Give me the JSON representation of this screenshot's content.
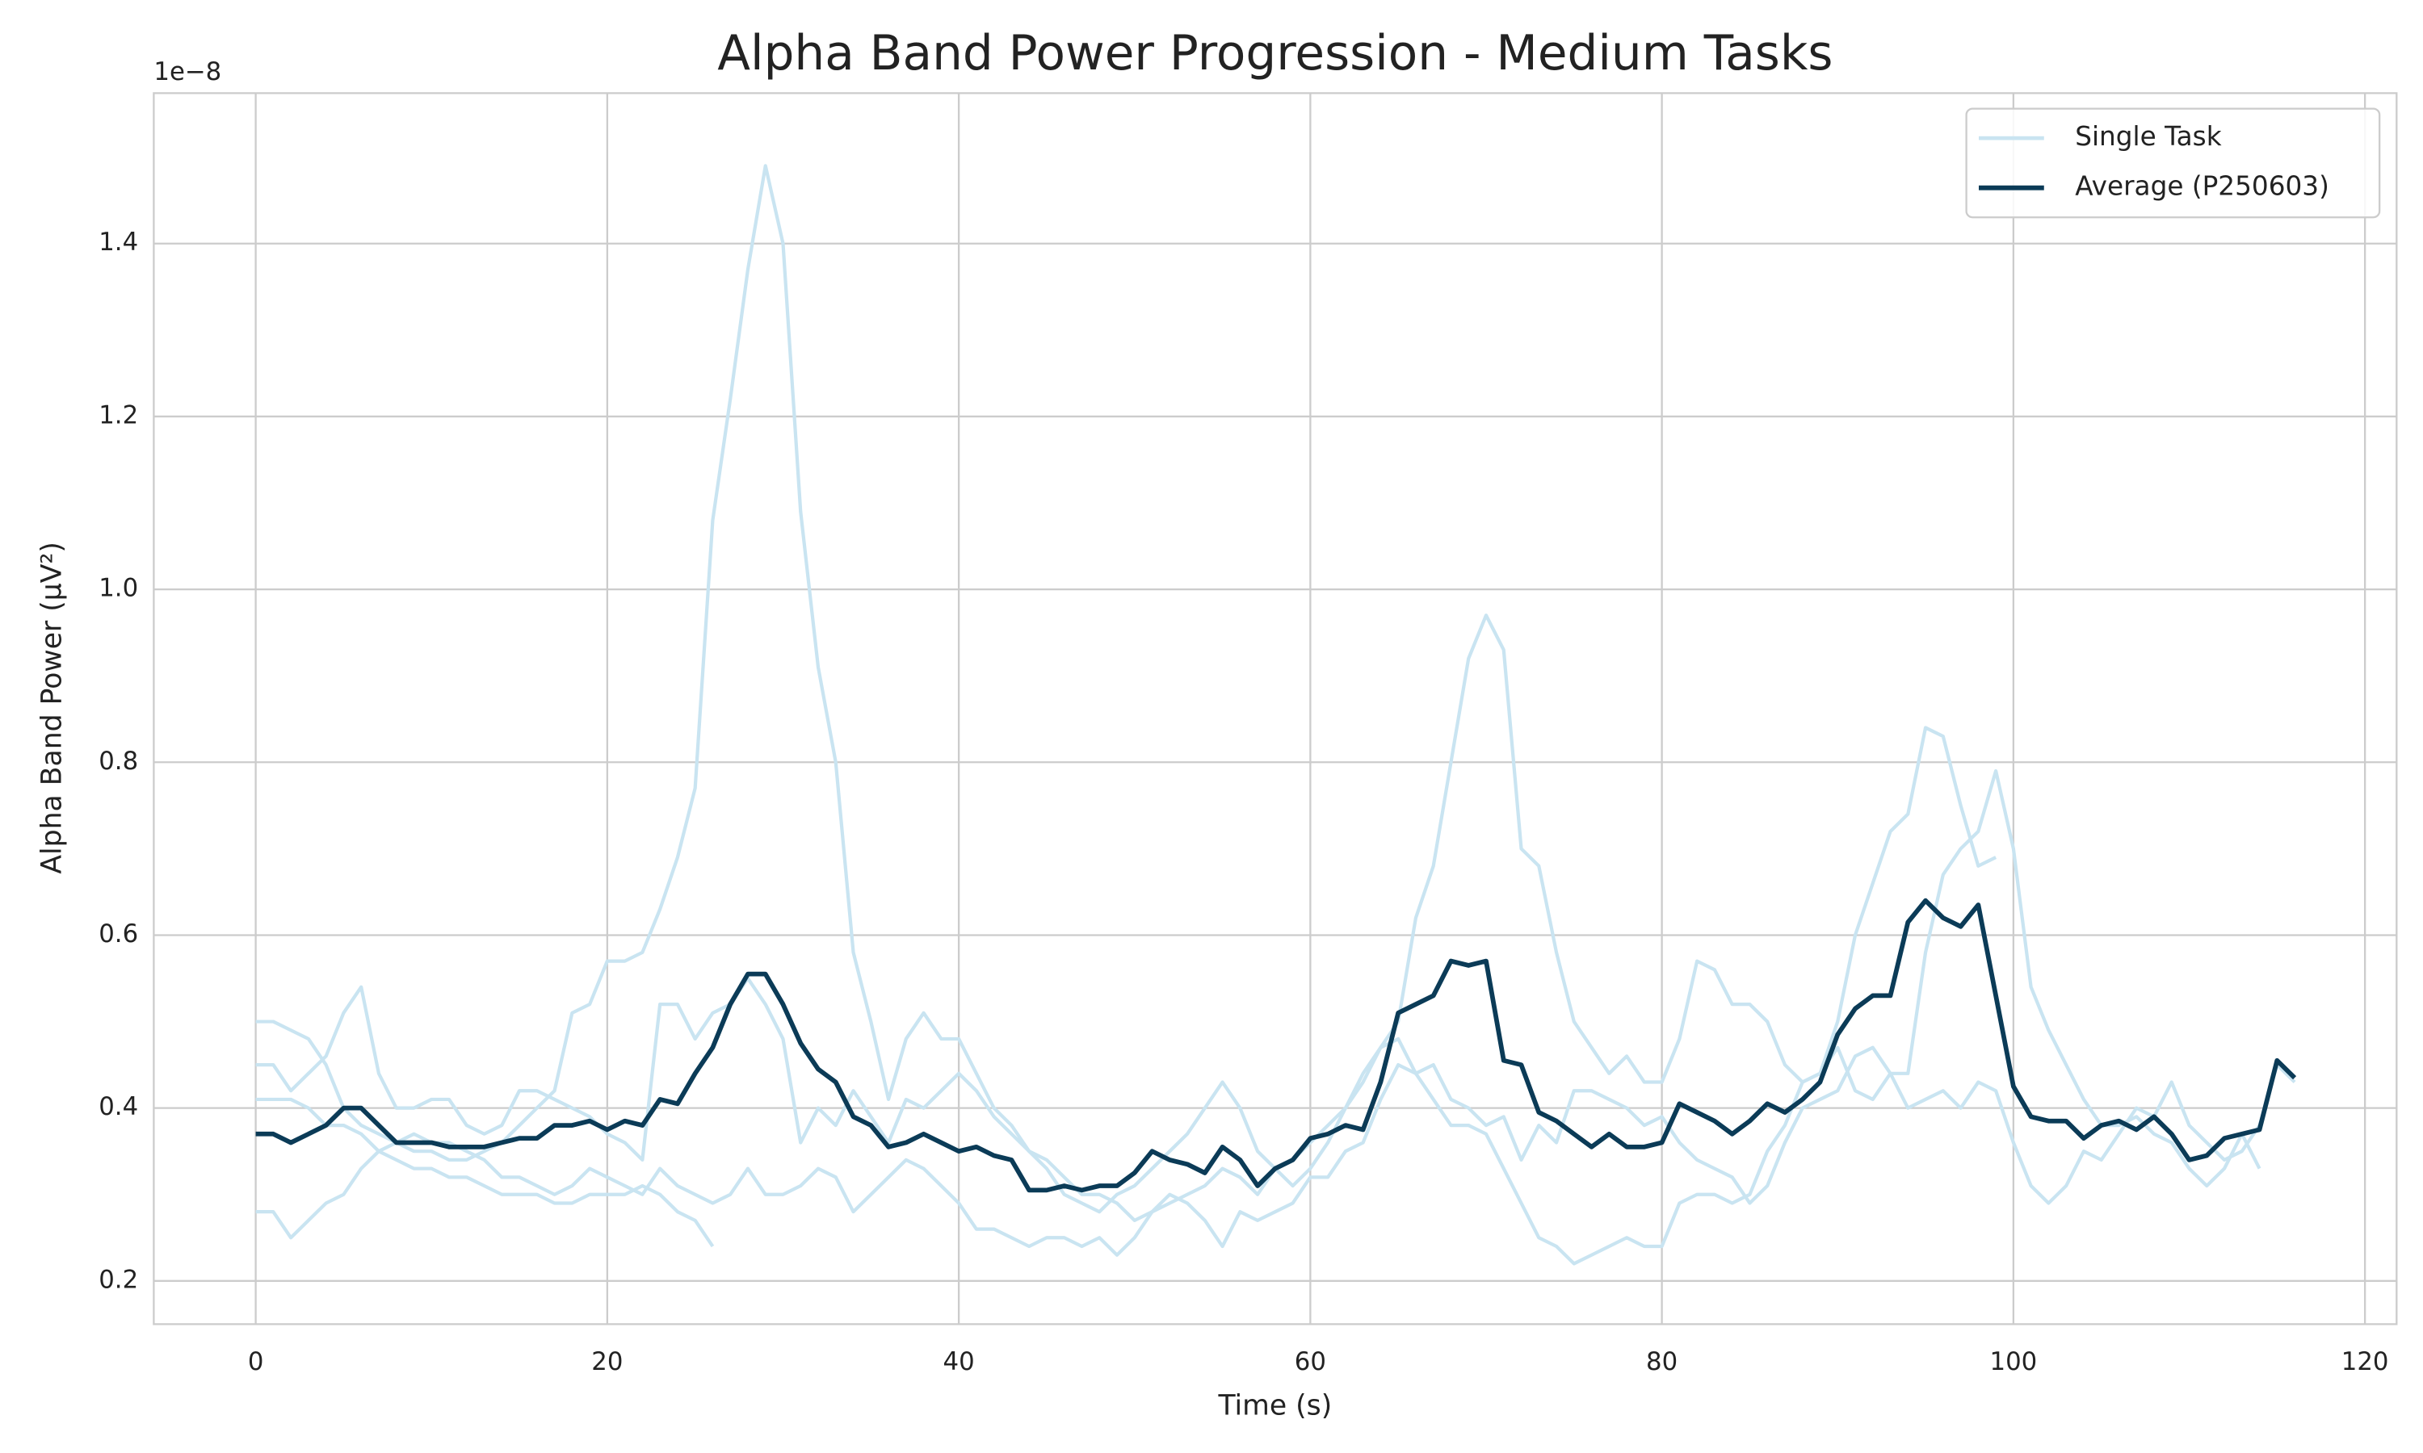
{
  "chart_data": {
    "type": "line",
    "title": "Alpha Band Power Progression - Medium Tasks",
    "x_label": "Time (s)",
    "y_label": "Alpha Band Power (µV²)",
    "y_offset_label": "1e−8",
    "xlim": [
      -5.8,
      121.8
    ],
    "xticks": [
      0,
      20,
      40,
      60,
      80,
      100,
      120
    ],
    "ylim": [
      0.15,
      1.574
    ],
    "yticks": [
      0.2,
      0.4,
      0.6,
      0.8,
      {
        "value": 1,
        "label": "1.0"
      },
      1.2,
      1.4
    ],
    "grid": true,
    "legend": "upper right",
    "x": [
      0,
      1,
      2,
      3,
      4,
      5,
      6,
      7,
      8,
      9,
      10,
      11,
      12,
      13,
      14,
      15,
      16,
      17,
      18,
      19,
      20,
      21,
      22,
      23,
      24,
      25,
      26,
      27,
      28,
      29,
      30,
      31,
      32,
      33,
      34,
      35,
      36,
      37,
      38,
      39,
      40,
      41,
      42,
      43,
      44,
      45,
      46,
      47,
      48,
      49,
      50,
      51,
      52,
      53,
      54,
      55,
      56,
      57,
      58,
      59,
      60,
      61,
      62,
      63,
      64,
      65,
      66,
      67,
      68,
      69,
      70,
      71,
      72,
      73,
      74,
      75,
      76,
      77,
      78,
      79,
      80,
      81,
      82,
      83,
      84,
      85,
      86,
      87,
      88,
      89,
      90,
      91,
      92,
      93,
      94,
      95,
      96,
      97,
      98,
      99,
      100,
      101,
      102,
      103,
      104,
      105,
      106,
      107,
      108,
      109,
      110,
      111,
      112,
      113,
      114,
      115,
      116
    ],
    "series": [
      {
        "name": "Single Task",
        "color": "#c9e4f1",
        "values": [
          [
            0.5,
            0.5,
            0.49,
            0.48,
            0.45,
            0.4,
            0.38,
            0.37,
            0.36,
            0.35,
            0.35,
            0.34,
            0.34,
            0.35,
            0.36,
            0.38,
            0.4,
            0.42,
            0.51,
            0.52,
            0.57,
            0.57,
            0.58,
            0.63,
            0.69,
            0.77,
            1.08,
            1.22,
            1.37,
            1.49,
            1.4,
            1.09,
            0.91,
            0.8,
            0.58,
            0.5,
            0.41,
            0.48,
            0.51,
            0.48,
            0.48,
            0.44,
            0.4,
            0.38,
            0.35,
            0.33,
            0.3,
            0.29,
            0.28,
            0.3,
            0.31,
            0.33,
            0.35,
            0.37,
            0.4,
            0.43,
            0.4,
            0.35,
            0.33,
            0.34,
            0.36,
            0.38,
            0.4,
            0.43,
            0.47,
            0.5,
            0.62,
            0.68,
            0.8,
            0.92,
            0.97,
            0.93,
            0.7,
            0.68,
            0.58,
            0.5,
            0.47,
            0.44,
            0.46,
            0.43,
            0.43,
            0.48,
            0.57,
            0.56,
            0.52,
            0.52,
            0.5,
            0.45,
            0.43,
            0.44,
            0.5,
            0.6,
            0.66,
            0.72,
            0.74,
            0.84,
            0.83,
            0.75,
            0.68,
            0.69,
            null,
            null,
            null,
            null,
            null,
            null,
            null,
            null,
            null,
            null,
            null,
            null,
            null,
            null,
            null,
            null,
            null
          ],
          [
            0.28,
            0.28,
            0.25,
            0.27,
            0.29,
            0.3,
            0.33,
            0.35,
            0.36,
            0.37,
            0.36,
            0.36,
            0.35,
            0.34,
            0.32,
            0.32,
            0.31,
            0.3,
            0.31,
            0.33,
            0.32,
            0.31,
            0.3,
            0.33,
            0.31,
            0.3,
            0.29,
            0.3,
            0.33,
            0.3,
            0.3,
            0.31,
            0.33,
            0.32,
            0.28,
            0.3,
            0.32,
            0.34,
            0.33,
            0.31,
            0.29,
            0.26,
            0.26,
            0.25,
            0.24,
            0.25,
            0.25,
            0.24,
            0.25,
            0.23,
            0.25,
            0.28,
            0.3,
            0.29,
            0.27,
            0.24,
            0.28,
            0.27,
            0.28,
            0.29,
            0.32,
            0.32,
            0.35,
            0.36,
            0.41,
            0.45,
            0.44,
            0.45,
            0.41,
            0.4,
            0.38,
            0.39,
            0.34,
            0.38,
            0.36,
            0.42,
            0.42,
            0.41,
            0.4,
            0.38,
            0.39,
            0.36,
            0.34,
            0.33,
            0.32,
            0.29,
            0.31,
            0.36,
            0.4,
            0.41,
            0.42,
            0.46,
            0.47,
            0.44,
            0.44,
            0.58,
            0.67,
            0.7,
            0.72,
            0.79,
            0.7,
            0.54,
            0.49,
            0.45,
            0.41,
            0.38,
            0.38,
            0.39,
            0.37,
            0.36,
            0.33,
            0.31,
            0.33,
            0.37,
            0.33,
            null,
            null
          ],
          [
            0.41,
            0.41,
            0.41,
            0.4,
            0.38,
            0.38,
            0.37,
            0.35,
            0.34,
            0.33,
            0.33,
            0.32,
            0.32,
            0.31,
            0.3,
            0.3,
            0.3,
            0.29,
            0.29,
            0.3,
            0.3,
            0.3,
            0.31,
            0.3,
            0.28,
            0.27,
            0.24,
            null,
            null,
            null,
            null,
            null,
            null,
            null,
            null,
            null,
            null,
            null,
            null,
            null,
            null,
            null,
            null,
            null,
            null,
            null,
            null,
            null,
            null,
            null,
            null,
            null,
            null,
            null,
            null,
            null,
            null,
            null,
            null,
            null,
            null,
            null,
            null,
            null,
            null,
            null,
            null,
            null,
            null,
            null,
            null,
            null,
            null,
            null,
            null,
            null,
            null,
            null,
            null,
            null,
            null,
            null,
            null,
            null,
            null,
            null,
            null,
            null,
            null,
            null,
            null,
            null,
            null,
            null,
            null,
            null,
            null,
            null,
            null,
            null,
            null,
            null,
            null,
            null,
            null,
            null,
            null,
            null,
            null,
            null,
            null,
            null,
            null,
            null,
            null,
            null,
            null
          ],
          [
            0.45,
            0.45,
            0.42,
            0.44,
            0.46,
            0.51,
            0.54,
            0.44,
            0.4,
            0.4,
            0.41,
            0.41,
            0.38,
            0.37,
            0.38,
            0.42,
            0.42,
            0.41,
            0.4,
            0.39,
            0.37,
            0.36,
            0.34,
            0.52,
            0.52,
            0.48,
            0.51,
            0.52,
            0.55,
            0.52,
            0.48,
            0.36,
            0.4,
            0.38,
            0.42,
            0.39,
            0.36,
            0.41,
            0.4,
            0.42,
            0.44,
            0.42,
            0.39,
            0.37,
            0.35,
            0.34,
            0.32,
            0.3,
            0.3,
            0.29,
            0.27,
            0.28,
            0.29,
            0.3,
            0.31,
            0.33,
            0.32,
            0.3,
            0.33,
            0.31,
            0.33,
            0.36,
            0.4,
            0.44,
            0.47,
            0.48,
            0.44,
            0.41,
            0.38,
            0.38,
            0.37,
            0.33,
            0.29,
            0.25,
            0.24,
            0.22,
            0.23,
            0.24,
            0.25,
            0.24,
            0.24,
            0.29,
            0.3,
            0.3,
            0.29,
            0.3,
            0.35,
            0.38,
            0.43,
            0.44,
            0.47,
            0.42,
            0.41,
            0.44,
            0.4,
            0.41,
            0.42,
            0.4,
            0.43,
            0.42,
            0.36,
            0.31,
            0.29,
            0.31,
            0.35,
            0.34,
            0.37,
            0.4,
            0.39,
            0.43,
            0.38,
            0.36,
            0.34,
            0.35,
            0.38,
            0.45,
            0.43
          ]
        ]
      },
      {
        "name": "Average (P250603)",
        "color": "#0b3b57",
        "values": [
          0.37,
          0.37,
          0.36,
          0.37,
          0.38,
          0.4,
          0.4,
          0.38,
          0.36,
          0.36,
          0.36,
          0.355,
          0.355,
          0.355,
          0.36,
          0.365,
          0.365,
          0.38,
          0.38,
          0.385,
          0.375,
          0.385,
          0.38,
          0.41,
          0.405,
          0.44,
          0.47,
          0.52,
          0.555,
          0.555,
          0.52,
          0.475,
          0.445,
          0.43,
          0.39,
          0.38,
          0.355,
          0.36,
          0.37,
          0.36,
          0.35,
          0.355,
          0.345,
          0.34,
          0.305,
          0.305,
          0.31,
          0.305,
          0.31,
          0.31,
          0.325,
          0.35,
          0.34,
          0.335,
          0.325,
          0.355,
          0.34,
          0.31,
          0.33,
          0.34,
          0.365,
          0.37,
          0.38,
          0.375,
          0.43,
          0.51,
          0.52,
          0.53,
          0.57,
          0.565,
          0.57,
          0.455,
          0.45,
          0.395,
          0.385,
          0.37,
          0.355,
          0.37,
          0.355,
          0.355,
          0.36,
          0.405,
          0.395,
          0.385,
          0.37,
          0.385,
          0.405,
          0.395,
          0.41,
          0.43,
          0.485,
          0.515,
          0.53,
          0.53,
          0.615,
          0.64,
          0.62,
          0.61,
          0.635,
          0.53,
          0.425,
          0.39,
          0.385,
          0.385,
          0.365,
          0.38,
          0.385,
          0.375,
          0.39,
          0.37,
          0.34,
          0.345,
          0.365,
          0.37,
          0.375,
          0.455,
          0.435
        ]
      }
    ]
  }
}
